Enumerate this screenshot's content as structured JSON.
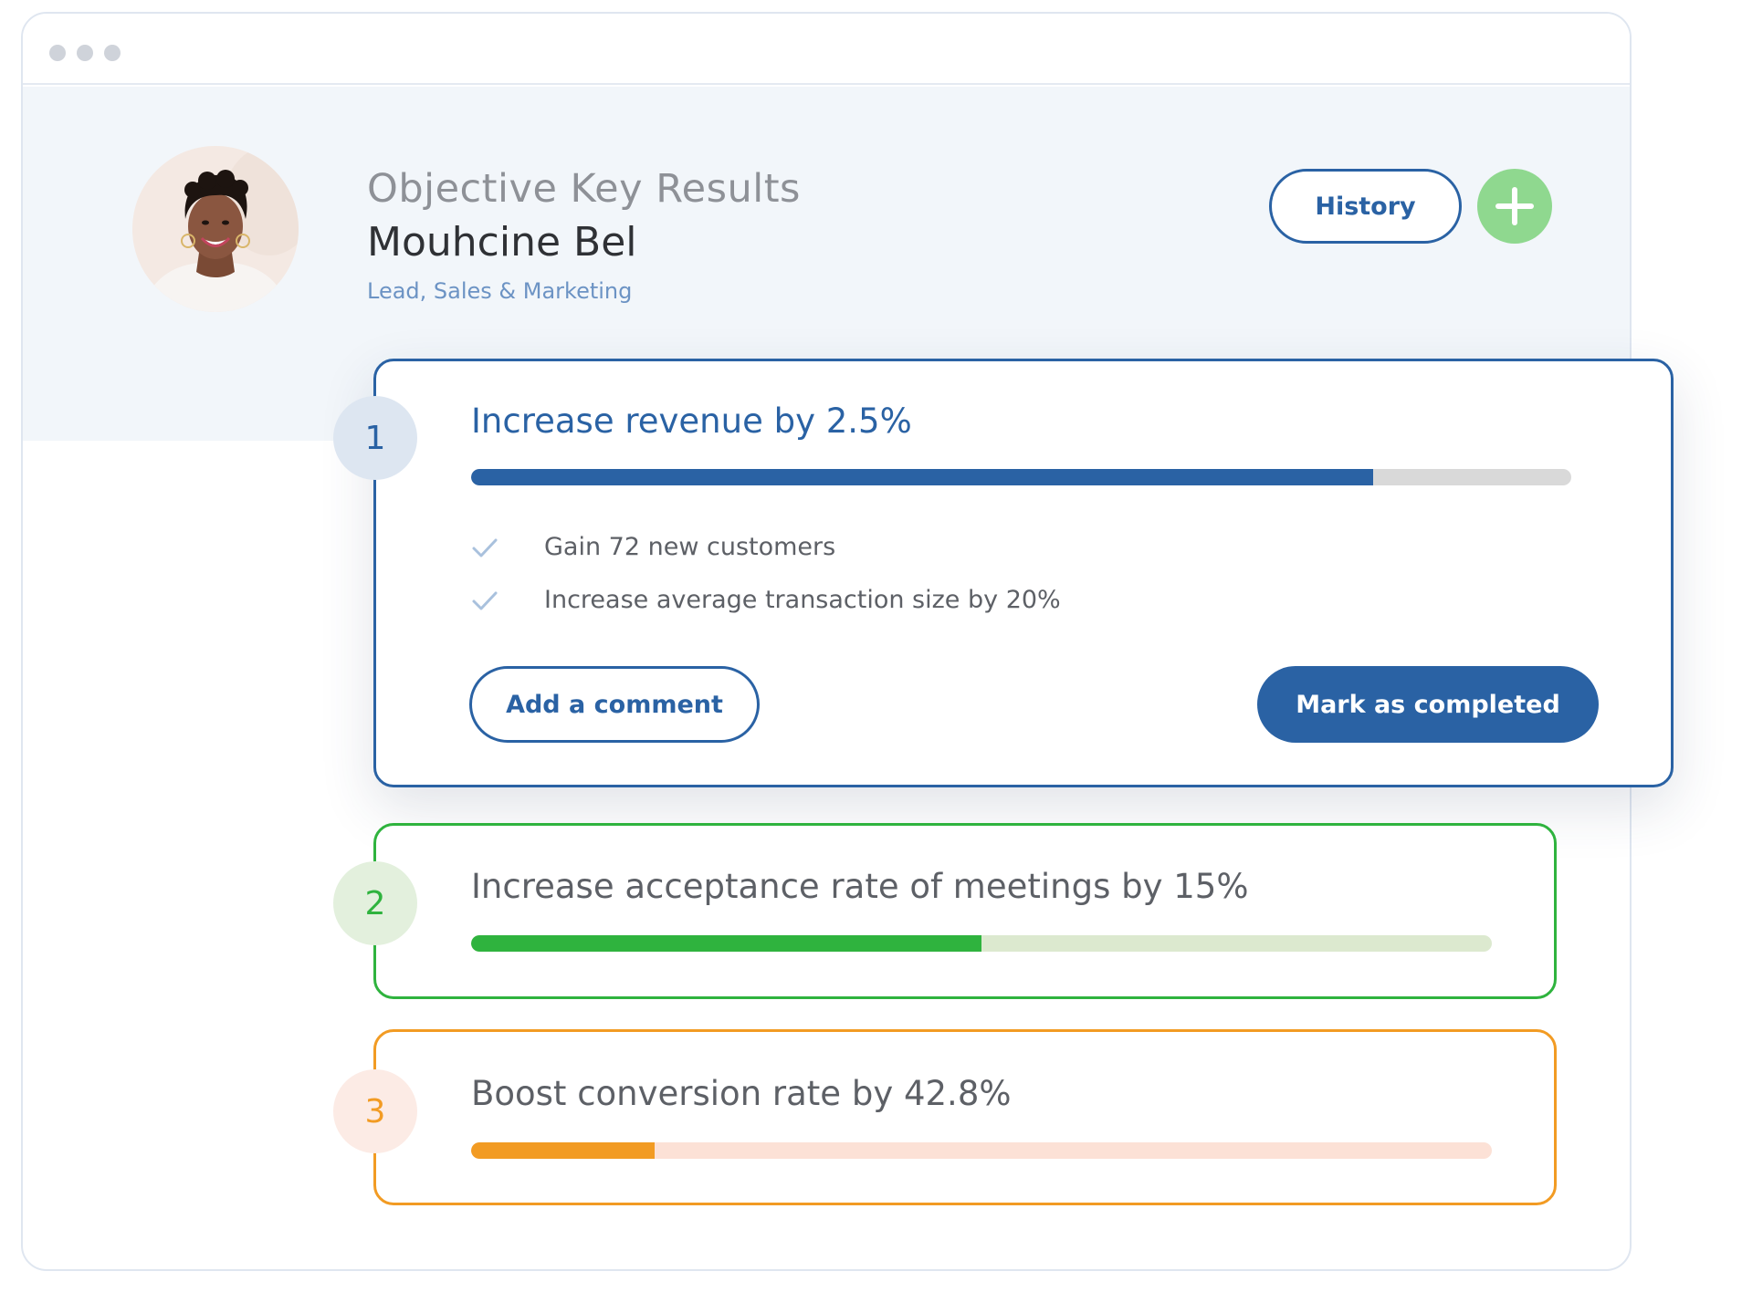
{
  "header": {
    "title": "Objective Key Results",
    "name": "Mouhcine Bel",
    "role": "Lead, Sales & Marketing",
    "history_label": "History",
    "add_icon": "plus-icon"
  },
  "colors": {
    "primary_blue": "#2a62a4",
    "green": "#2fb33e",
    "orange": "#f29b23",
    "add_button": "#8fd88f"
  },
  "objectives": [
    {
      "number": "1",
      "title": "Increase revenue by 2.5%",
      "progress": 0.82,
      "key_results": [
        "Gain 72 new customers",
        "Increase average transaction size by 20%"
      ],
      "comment_label": "Add a comment",
      "complete_label": "Mark as completed"
    },
    {
      "number": "2",
      "title": "Increase acceptance rate of meetings by 15%",
      "progress": 0.5
    },
    {
      "number": "3",
      "title": "Boost conversion rate by 42.8%",
      "progress": 0.18
    }
  ]
}
